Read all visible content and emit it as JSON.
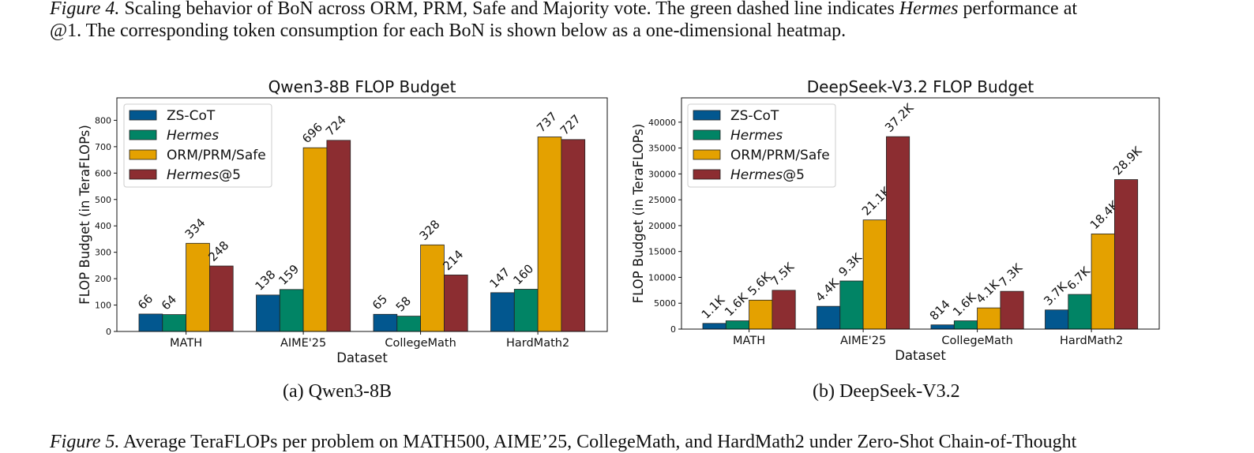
{
  "captions": {
    "fig4_label": "Figure 4.",
    "fig4_line1_a": " Scaling behavior of BoN across ORM, PRM, Safe and Majority vote. The green dashed line indicates ",
    "fig4_line1_it": "Hermes",
    "fig4_line1_b": " performance at",
    "fig4_line2": "@1. The corresponding token consumption for each BoN is shown below as a one-dimensional heatmap.",
    "fig5_label": "Figure 5.",
    "fig5_text": " Average TeraFLOPs per problem on MATH500, AIME’25, CollegeMath, and HardMath2 under Zero-Shot Chain-of-Thought",
    "sub_a": "(a)  Qwen3-8B",
    "sub_b": "(b)  DeepSeek-V3.2"
  },
  "colors": {
    "zscot": "#02578F",
    "hermes": "#018465",
    "orm": "#E4A100",
    "hermes5": "#8C2D31"
  },
  "chart_data": [
    {
      "type": "bar",
      "title": "Qwen3-8B FLOP Budget",
      "xlabel": "Dataset",
      "ylabel": "FLOP Budget (in TeraFLOPs)",
      "categories": [
        "MATH",
        "AIME'25",
        "CollegeMath",
        "HardMath2"
      ],
      "ylim": [
        0,
        885
      ],
      "yticks": [
        0,
        100,
        200,
        300,
        400,
        500,
        600,
        700,
        800
      ],
      "legend": "top-left",
      "series": [
        {
          "name": "ZS-CoT",
          "legend_name": "ZS-CoT",
          "legend_suffix": "",
          "italic": false,
          "color": "#02578F",
          "values": [
            66,
            138,
            65,
            147
          ],
          "labels": [
            "66",
            "138",
            "65",
            "147"
          ]
        },
        {
          "name": "Hermes",
          "legend_name": "Hermes",
          "legend_suffix": "",
          "italic": true,
          "color": "#018465",
          "values": [
            64,
            159,
            58,
            160
          ],
          "labels": [
            "64",
            "159",
            "58",
            "160"
          ]
        },
        {
          "name": "ORM/PRM/Safe",
          "legend_name": "ORM/PRM/Safe",
          "legend_suffix": "",
          "italic": false,
          "color": "#E4A100",
          "values": [
            334,
            696,
            328,
            737
          ],
          "labels": [
            "334",
            "696",
            "328",
            "737"
          ]
        },
        {
          "name": "Hermes@5",
          "legend_name": "Hermes",
          "legend_suffix": "@5",
          "italic": true,
          "color": "#8C2D31",
          "values": [
            248,
            724,
            214,
            727
          ],
          "labels": [
            "248",
            "724",
            "214",
            "727"
          ]
        }
      ]
    },
    {
      "type": "bar",
      "title": "DeepSeek-V3.2 FLOP Budget",
      "xlabel": "Dataset",
      "ylabel": "FLOP Budget (in TeraFLOPs)",
      "categories": [
        "MATH",
        "AIME'25",
        "CollegeMath",
        "HardMath2"
      ],
      "ylim": [
        0,
        44700
      ],
      "yticks": [
        0,
        5000,
        10000,
        15000,
        20000,
        25000,
        30000,
        35000,
        40000
      ],
      "legend": "top-left",
      "series": [
        {
          "name": "ZS-CoT",
          "legend_name": "ZS-CoT",
          "legend_suffix": "",
          "italic": false,
          "color": "#02578F",
          "values": [
            1100,
            4400,
            814,
            3700
          ],
          "labels": [
            "1.1K",
            "4.4K",
            "814",
            "3.7K"
          ]
        },
        {
          "name": "Hermes",
          "legend_name": "Hermes",
          "legend_suffix": "",
          "italic": true,
          "color": "#018465",
          "values": [
            1600,
            9300,
            1600,
            6700
          ],
          "labels": [
            "1.6K",
            "9.3K",
            "1.6K",
            "6.7K"
          ]
        },
        {
          "name": "ORM/PRM/Safe",
          "legend_name": "ORM/PRM/Safe",
          "legend_suffix": "",
          "italic": false,
          "color": "#E4A100",
          "values": [
            5600,
            21100,
            4100,
            18400
          ],
          "labels": [
            "5.6K",
            "21.1K",
            "4.1K",
            "18.4K"
          ]
        },
        {
          "name": "Hermes@5",
          "legend_name": "Hermes",
          "legend_suffix": "@5",
          "italic": true,
          "color": "#8C2D31",
          "values": [
            7500,
            37200,
            7300,
            28900
          ],
          "labels": [
            "7.5K",
            "37.2K",
            "7.3K",
            "28.9K"
          ]
        }
      ]
    }
  ]
}
